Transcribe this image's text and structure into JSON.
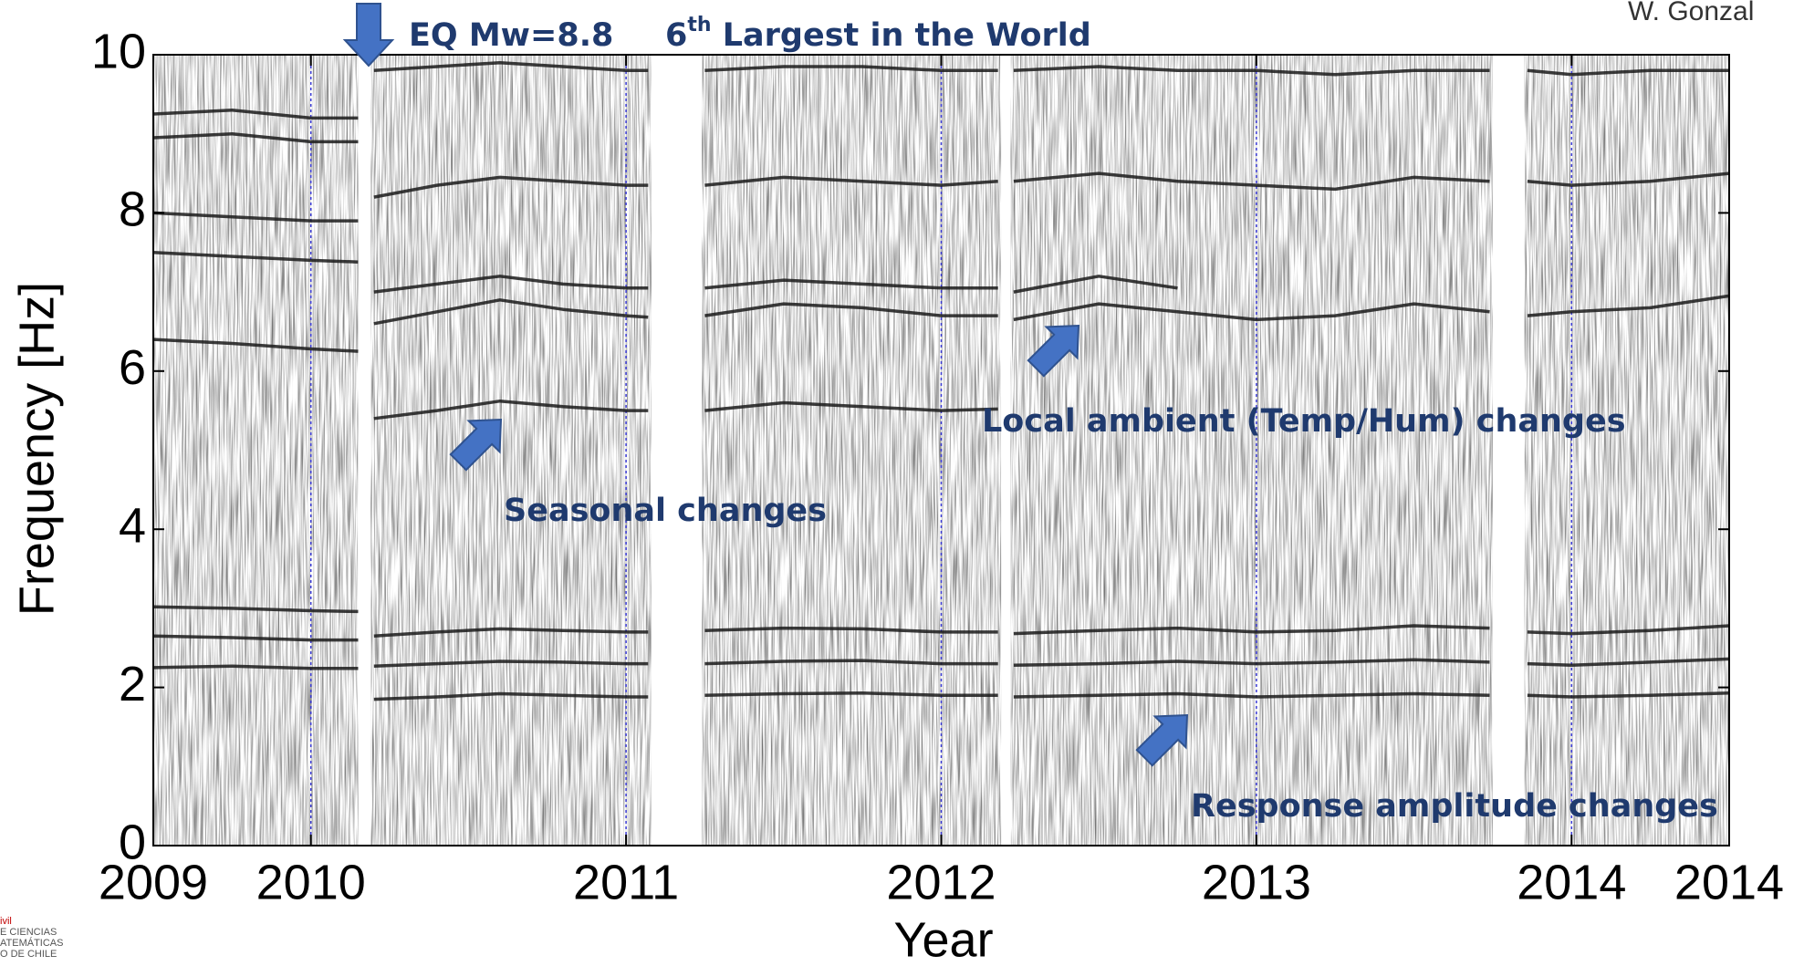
{
  "chart_data": {
    "type": "spectrogram-lines",
    "xlabel": "Year",
    "ylabel": "Frequency [Hz]",
    "xlim": [
      2009.5,
      2014.5
    ],
    "ylim": [
      0,
      10
    ],
    "xticks": [
      {
        "value": 2009.5,
        "label": "2009"
      },
      2010,
      2011,
      2012,
      2013,
      2014,
      {
        "value": 2014.5,
        "label": "2014"
      }
    ],
    "yticks": [
      0,
      2,
      4,
      6,
      8,
      10
    ],
    "xgrid": true,
    "xgrid_color": "#3b3bd6",
    "gaps": [
      [
        2010.15,
        2010.19
      ],
      [
        2011.08,
        2011.24
      ],
      [
        2012.19,
        2012.22
      ],
      [
        2013.75,
        2013.85
      ]
    ],
    "x": [
      2009.5,
      2009.75,
      2010.0,
      2010.15,
      2010.17,
      2010.2,
      2010.4,
      2010.6,
      2010.8,
      2011.0,
      2011.07,
      2011.15,
      2011.25,
      2011.5,
      2011.75,
      2012.0,
      2012.18,
      2012.2,
      2012.23,
      2012.5,
      2012.75,
      2013.0,
      2013.25,
      2013.5,
      2013.74,
      2013.8,
      2013.86,
      2014.0,
      2014.25,
      2014.5
    ],
    "series": [
      {
        "color": "#1a1a1a",
        "values": [
          2.25,
          2.27,
          2.24,
          2.24,
          null,
          1.85,
          1.88,
          1.92,
          1.9,
          1.88,
          1.88,
          null,
          1.9,
          1.92,
          1.93,
          1.9,
          1.9,
          null,
          1.88,
          1.9,
          1.92,
          1.88,
          1.9,
          1.92,
          1.9,
          null,
          1.9,
          1.88,
          1.9,
          1.93
        ]
      },
      {
        "color": "#1a1a1a",
        "values": [
          2.65,
          2.63,
          2.6,
          2.6,
          null,
          2.27,
          2.3,
          2.33,
          2.32,
          2.3,
          2.3,
          null,
          2.3,
          2.33,
          2.34,
          2.3,
          2.3,
          null,
          2.28,
          2.3,
          2.33,
          2.3,
          2.32,
          2.35,
          2.32,
          null,
          2.3,
          2.28,
          2.32,
          2.36
        ]
      },
      {
        "color": "#1a1a1a",
        "values": [
          3.02,
          3.0,
          2.97,
          2.96,
          null,
          2.65,
          2.7,
          2.74,
          2.72,
          2.7,
          2.7,
          null,
          2.72,
          2.75,
          2.74,
          2.7,
          2.7,
          null,
          2.68,
          2.72,
          2.75,
          2.7,
          2.72,
          2.78,
          2.75,
          null,
          2.7,
          2.68,
          2.72,
          2.78
        ]
      },
      {
        "color": "#1a1a1a",
        "values": [
          6.4,
          6.35,
          6.28,
          6.25,
          null,
          5.4,
          5.5,
          5.62,
          5.55,
          5.5,
          5.5,
          null,
          5.5,
          5.6,
          5.55,
          5.5,
          5.52,
          null,
          null,
          null,
          null,
          null,
          null,
          null,
          null,
          null,
          null,
          null,
          null,
          null
        ]
      },
      {
        "color": "#1a1a1a",
        "values": [
          7.5,
          7.45,
          7.4,
          7.38,
          null,
          6.6,
          6.75,
          6.9,
          6.78,
          6.7,
          6.68,
          null,
          6.7,
          6.85,
          6.8,
          6.7,
          6.7,
          null,
          6.65,
          6.85,
          6.75,
          6.65,
          6.7,
          6.85,
          6.75,
          null,
          6.7,
          6.75,
          6.8,
          6.95
        ]
      },
      {
        "color": "#1a1a1a",
        "values": [
          8.0,
          7.95,
          7.9,
          7.9,
          null,
          7.0,
          7.1,
          7.2,
          7.1,
          7.05,
          7.05,
          null,
          7.05,
          7.15,
          7.1,
          7.05,
          7.05,
          null,
          7.0,
          7.2,
          7.05,
          null,
          null,
          null,
          null,
          null,
          null,
          null,
          null,
          null
        ]
      },
      {
        "color": "#1a1a1a",
        "values": [
          8.95,
          9.0,
          8.9,
          8.9,
          null,
          8.2,
          8.35,
          8.45,
          8.4,
          8.35,
          8.35,
          null,
          8.35,
          8.45,
          8.4,
          8.35,
          8.4,
          null,
          8.4,
          8.5,
          8.4,
          8.35,
          8.3,
          8.45,
          8.4,
          null,
          8.4,
          8.35,
          8.4,
          8.5
        ]
      },
      {
        "color": "#1a1a1a",
        "values": [
          9.25,
          9.3,
          9.2,
          9.2,
          null,
          9.8,
          9.85,
          9.9,
          9.85,
          9.8,
          9.8,
          null,
          9.8,
          9.85,
          9.85,
          9.8,
          9.8,
          null,
          9.8,
          9.85,
          9.8,
          9.8,
          9.75,
          9.8,
          9.8,
          null,
          9.8,
          9.75,
          9.8,
          9.8
        ]
      }
    ],
    "annotations": {
      "eq": "EQ Mw=8.8",
      "rank": {
        "text": "6",
        "sup": "th",
        "rest": " Largest in the World"
      },
      "seasonal": "Seasonal changes",
      "ambient": "Local ambient (Temp/Hum) changes",
      "response": "Response amplitude changes"
    }
  },
  "author": "W. Gonzal",
  "logo": [
    "ivil",
    "E CIENCIAS",
    "ATEMÁTICAS",
    "O DE CHILE"
  ]
}
